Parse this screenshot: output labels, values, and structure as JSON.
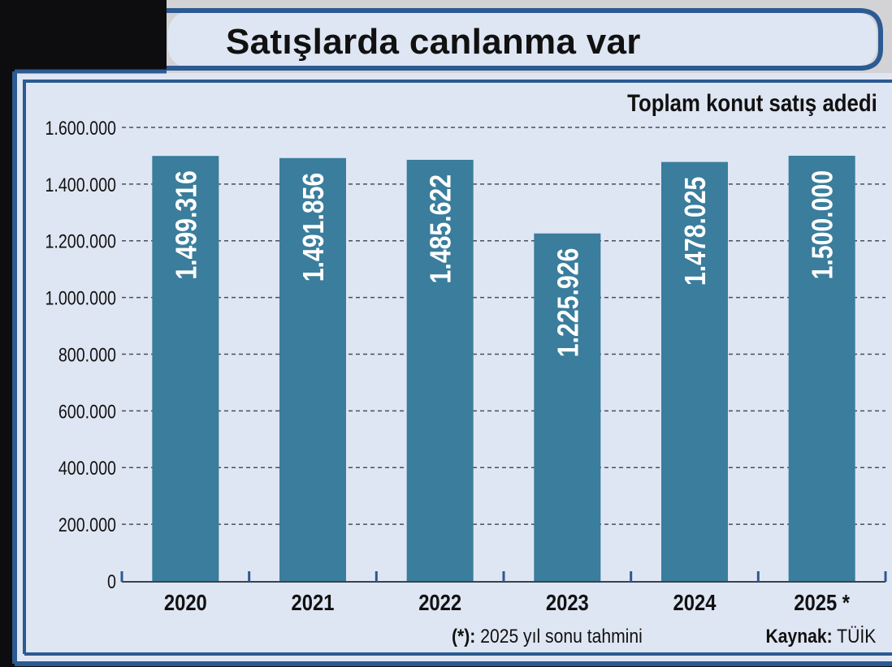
{
  "title": "Satışlarda canlanma var",
  "subtitle": "Toplam konut satış adedi",
  "footnote": {
    "marker": "(*):",
    "text": "2025 yıl sonu tahmini"
  },
  "source": {
    "label": "Kaynak:",
    "name": "TÜİK"
  },
  "colors": {
    "bar": "#3a7d9c",
    "panel": "#dfe6f3",
    "frame": "#2c5a92",
    "background": "#0d0d0f"
  },
  "chart_data": {
    "type": "bar",
    "categories": [
      "2020",
      "2021",
      "2022",
      "2023",
      "2024",
      "2025 *"
    ],
    "values": [
      1499316,
      1491856,
      1485622,
      1225926,
      1478025,
      1500000
    ],
    "value_labels": [
      "1.499.316",
      "1.491.856",
      "1.485.622",
      "1.225.926",
      "1.478.025",
      "1.500.000"
    ],
    "title": "Satışlarda canlanma var",
    "subtitle": "Toplam konut satış adedi",
    "ylim": [
      0,
      1600000
    ],
    "yticks": [
      0,
      200000,
      400000,
      600000,
      800000,
      1000000,
      1200000,
      1400000,
      1600000
    ],
    "ytick_labels": [
      "0",
      "200.000",
      "400.000",
      "600.000",
      "800.000",
      "1.000.000",
      "1.200.000",
      "1.400.000",
      "1.600.000"
    ],
    "grid": true,
    "legend": "none"
  }
}
